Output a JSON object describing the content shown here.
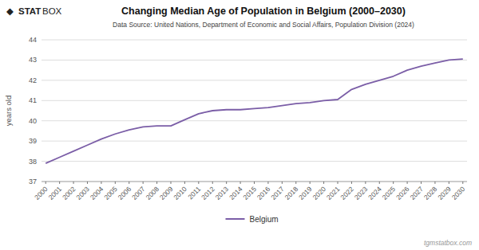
{
  "chart_data": {
    "type": "line",
    "title": "Changing Median Age of Population in Belgium (2000–2030)",
    "subtitle": "Data Source: United Nations, Department of Economic and Social Affairs, Population Division (2024)",
    "y_label": "years old",
    "annotations": [
      "◆",
      "STAT",
      "BOX",
      "tgmstatbox.com"
    ],
    "x": [
      2000,
      2001,
      2002,
      2003,
      2004,
      2005,
      2006,
      2007,
      2008,
      2009,
      2010,
      2011,
      2012,
      2013,
      2014,
      2015,
      2016,
      2017,
      2018,
      2019,
      2020,
      2021,
      2022,
      2023,
      2024,
      2025,
      2026,
      2027,
      2028,
      2029,
      2030
    ],
    "series": [
      {
        "name": "Belgium",
        "color": "#7b5ea7",
        "values": [
          37.9,
          38.2,
          38.5,
          38.8,
          39.1,
          39.35,
          39.55,
          39.7,
          39.75,
          39.75,
          40.05,
          40.35,
          40.5,
          40.55,
          40.55,
          40.6,
          40.65,
          40.75,
          40.85,
          40.9,
          41.0,
          41.05,
          41.55,
          41.8,
          42.0,
          42.2,
          42.5,
          42.7,
          42.85,
          43.0,
          43.05
        ]
      }
    ],
    "xlim": [
      1999.7,
      2030.3
    ],
    "xticks": [
      2000,
      2001,
      2002,
      2003,
      2004,
      2005,
      2006,
      2007,
      2008,
      2009,
      2010,
      2011,
      2012,
      2013,
      2014,
      2015,
      2016,
      2017,
      2018,
      2019,
      2020,
      2021,
      2022,
      2023,
      2024,
      2025,
      2026,
      2027,
      2028,
      2029,
      2030
    ],
    "ylim": [
      37,
      44
    ],
    "yticks": [
      37,
      38,
      39,
      40,
      41,
      42,
      43,
      44
    ],
    "grid": true,
    "legend": "bottom"
  }
}
